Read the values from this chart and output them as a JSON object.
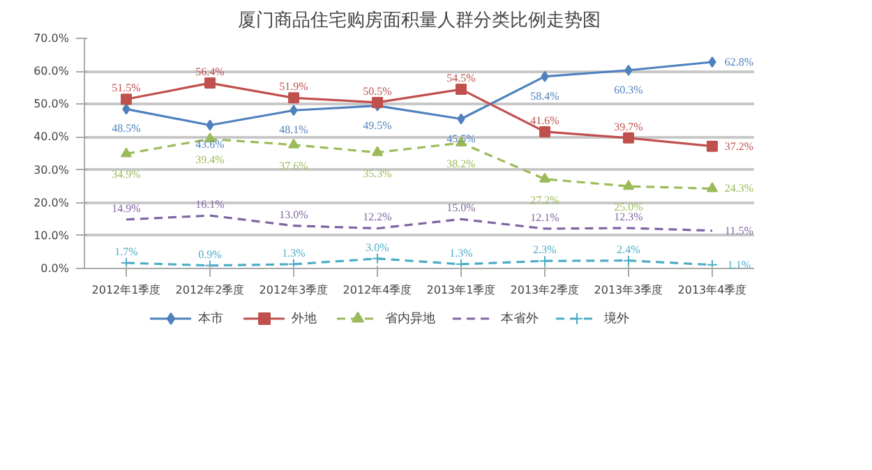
{
  "chart_data": {
    "type": "line",
    "title": "厦门商品住宅购房面积量人群分类比例走势图",
    "categories": [
      "2012年1季度",
      "2012年2季度",
      "2012年3季度",
      "2012年4季度",
      "2013年1季度",
      "2013年2季度",
      "2013年3季度",
      "2013年4季度"
    ],
    "series": [
      {
        "name": "本市",
        "color": "#4f81bd",
        "marker": "diamond",
        "line_style": "solid",
        "values": [
          48.5,
          43.6,
          48.1,
          49.5,
          45.5,
          58.4,
          60.3,
          62.8
        ],
        "value_labels": [
          "48.5%",
          "43.6%",
          "48.1%",
          "49.5%",
          "45.5%",
          "58.4%",
          "60.3%",
          "62.8%"
        ]
      },
      {
        "name": "外地",
        "color": "#c0504d",
        "marker": "square",
        "line_style": "solid",
        "values": [
          51.5,
          56.4,
          51.9,
          50.5,
          54.5,
          41.6,
          39.7,
          37.2
        ],
        "value_labels": [
          "51.5%",
          "56.4%",
          "51.9%",
          "50.5%",
          "54.5%",
          "41.6%",
          "39.7%",
          "37.2%"
        ]
      },
      {
        "name": "省内异地",
        "color": "#9bbb59",
        "marker": "triangle",
        "line_style": "dashed",
        "values": [
          34.9,
          39.4,
          37.6,
          35.3,
          38.2,
          27.2,
          25.0,
          24.3
        ],
        "value_labels": [
          "34.9%",
          "39.4%",
          "37.6%",
          "35.3%",
          "38.2%",
          "27.2%",
          "25.0%",
          "24.3%"
        ]
      },
      {
        "name": "本省外",
        "color": "#8064a2",
        "marker": "none",
        "line_style": "dashed",
        "values": [
          14.9,
          16.1,
          13.0,
          12.2,
          15.0,
          12.1,
          12.3,
          11.5
        ],
        "value_labels": [
          "14.9%",
          "16.1%",
          "13.0%",
          "12.2%",
          "15.0%",
          "12.1%",
          "12.3%",
          "11.5%"
        ]
      },
      {
        "name": "境外",
        "color": "#4bacc6",
        "marker": "cross",
        "line_style": "dashed",
        "values": [
          1.7,
          0.9,
          1.3,
          3.0,
          1.3,
          2.3,
          2.4,
          1.1
        ],
        "value_labels": [
          "1.7%",
          "0.9%",
          "1.3%",
          "3.0%",
          "1.3%",
          "2.3%",
          "2.4%",
          "1.1%"
        ]
      }
    ],
    "ylim": [
      0,
      70
    ],
    "yticks": [
      {
        "value": 0,
        "label": "0.0%"
      },
      {
        "value": 10,
        "label": "10.0%"
      },
      {
        "value": 20,
        "label": "20.0%"
      },
      {
        "value": 30,
        "label": "30.0%"
      },
      {
        "value": 40,
        "label": "40.0%"
      },
      {
        "value": 50,
        "label": "50.0%"
      },
      {
        "value": 60,
        "label": "60.0%"
      },
      {
        "value": 70,
        "label": "70.0%"
      }
    ],
    "grid": "y",
    "legend": "bottom"
  }
}
